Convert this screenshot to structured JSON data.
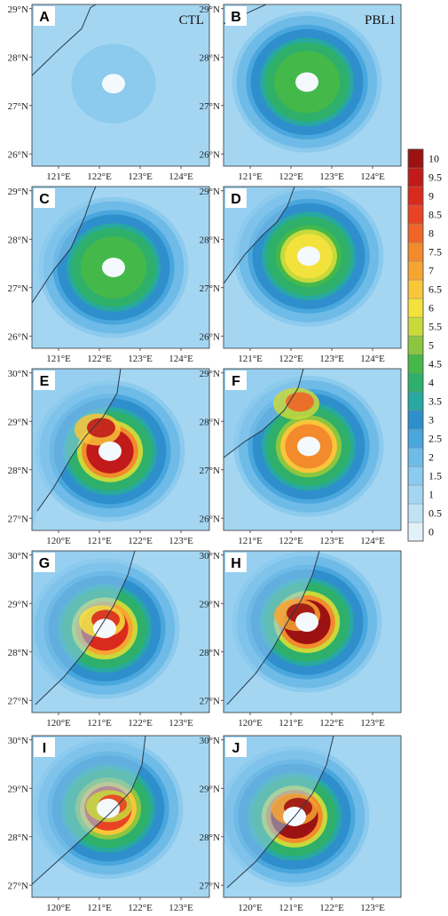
{
  "chart_data": {
    "type": "heatmap",
    "colorbar": {
      "levels": [
        "0",
        "0.5",
        "1",
        "1.5",
        "2",
        "2.5",
        "3",
        "3.5",
        "4",
        "4.5",
        "5",
        "5.5",
        "6",
        "6.5",
        "7",
        "7.5",
        "8",
        "8.5",
        "9",
        "9.5",
        "10"
      ],
      "colors": [
        "#e2f1f9",
        "#bfe2f5",
        "#a4d6f2",
        "#8ccaee",
        "#6fbbe7",
        "#4aa7de",
        "#2f8fcc",
        "#27a8a0",
        "#2fb06a",
        "#45b84a",
        "#8cc640",
        "#c8d93c",
        "#f4e23c",
        "#f9c63a",
        "#f7a532",
        "#f38a2c",
        "#ef6527",
        "#e84322",
        "#d92a1e",
        "#c01a1a",
        "#9c1212"
      ]
    },
    "panels": [
      {
        "letter": "A",
        "run": "CTL",
        "xticks": [
          "121°E",
          "122°E",
          "123°E",
          "124°E"
        ],
        "yticks": [
          "29°N",
          "28°N",
          "27°N",
          "26°N"
        ],
        "peak": 1.6
      },
      {
        "letter": "B",
        "run": "PBL1",
        "xticks": [
          "121°E",
          "122°E",
          "123°E",
          "124°E"
        ],
        "yticks": [
          "29°N",
          "28°N",
          "27°N",
          "26°N"
        ],
        "peak": 4.7
      },
      {
        "letter": "C",
        "run": "",
        "xticks": [
          "121°E",
          "122°E",
          "123°E",
          "124°E"
        ],
        "yticks": [
          "29°N",
          "28°N",
          "27°N",
          "26°N"
        ],
        "peak": 4.6
      },
      {
        "letter": "D",
        "run": "",
        "xticks": [
          "121°E",
          "122°E",
          "123°E",
          "124°E"
        ],
        "yticks": [
          "29°N",
          "28°N",
          "27°N",
          "26°N"
        ],
        "peak": 6.2
      },
      {
        "letter": "E",
        "run": "",
        "xticks": [
          "120°E",
          "121°E",
          "122°E",
          "123°E"
        ],
        "yticks": [
          "30°N",
          "29°N",
          "28°N",
          "27°N"
        ],
        "peak": 9.5
      },
      {
        "letter": "F",
        "run": "",
        "xticks": [
          "121°E",
          "122°E",
          "123°E",
          "124°E"
        ],
        "yticks": [
          "29°N",
          "28°N",
          "27°N",
          "26°N"
        ],
        "peak": 8.0
      },
      {
        "letter": "G",
        "run": "",
        "xticks": [
          "120°E",
          "121°E",
          "122°E",
          "123°E"
        ],
        "yticks": [
          "30°N",
          "29°N",
          "28°N",
          "27°N"
        ],
        "peak": 9.0
      },
      {
        "letter": "H",
        "run": "",
        "xticks": [
          "120°E",
          "121°E",
          "122°E",
          "123°E"
        ],
        "yticks": [
          "30°N",
          "29°N",
          "28°N",
          "27°N"
        ],
        "peak": 10.0
      },
      {
        "letter": "I",
        "run": "",
        "xticks": [
          "120°E",
          "121°E",
          "122°E",
          "123°E"
        ],
        "yticks": [
          "30°N",
          "29°N",
          "28°N",
          "27°N"
        ],
        "peak": 8.5
      },
      {
        "letter": "J",
        "run": "",
        "xticks": [
          "120°E",
          "121°E",
          "122°E",
          "123°E"
        ],
        "yticks": [
          "30°N",
          "29°N",
          "28°N",
          "27°N"
        ],
        "peak": 10.0
      }
    ]
  }
}
